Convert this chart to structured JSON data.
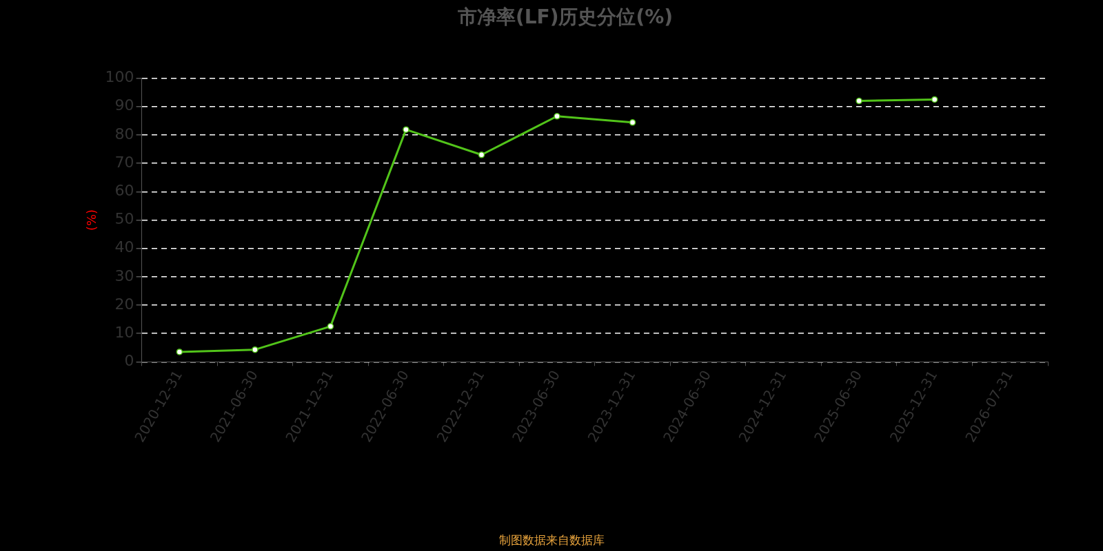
{
  "chart_data": {
    "type": "line",
    "title": "市净率(LF)历史分位(%)",
    "ylabel": "(%)",
    "categories": [
      "2020-12-31",
      "2021-06-30",
      "2021-12-31",
      "2022-06-30",
      "2022-12-31",
      "2023-06-30",
      "2023-12-31",
      "2024-06-30",
      "2024-12-31",
      "2025-06-30",
      "2025-12-31",
      "2026-07-31"
    ],
    "series": [
      {
        "color": "#52c41a",
        "values": [
          3.5,
          4.3,
          12.5,
          81.9,
          73.0,
          86.6,
          84.4,
          null,
          null,
          92.0,
          92.5,
          null
        ]
      }
    ],
    "ylim": [
      0,
      100
    ],
    "yticks": [
      0,
      10,
      20,
      30,
      40,
      50,
      60,
      70,
      80,
      90,
      100
    ],
    "grid": "y",
    "legend": false,
    "marker": "circle",
    "line_style": "solid",
    "annotations": [
      "制图数据来自数据库"
    ]
  }
}
